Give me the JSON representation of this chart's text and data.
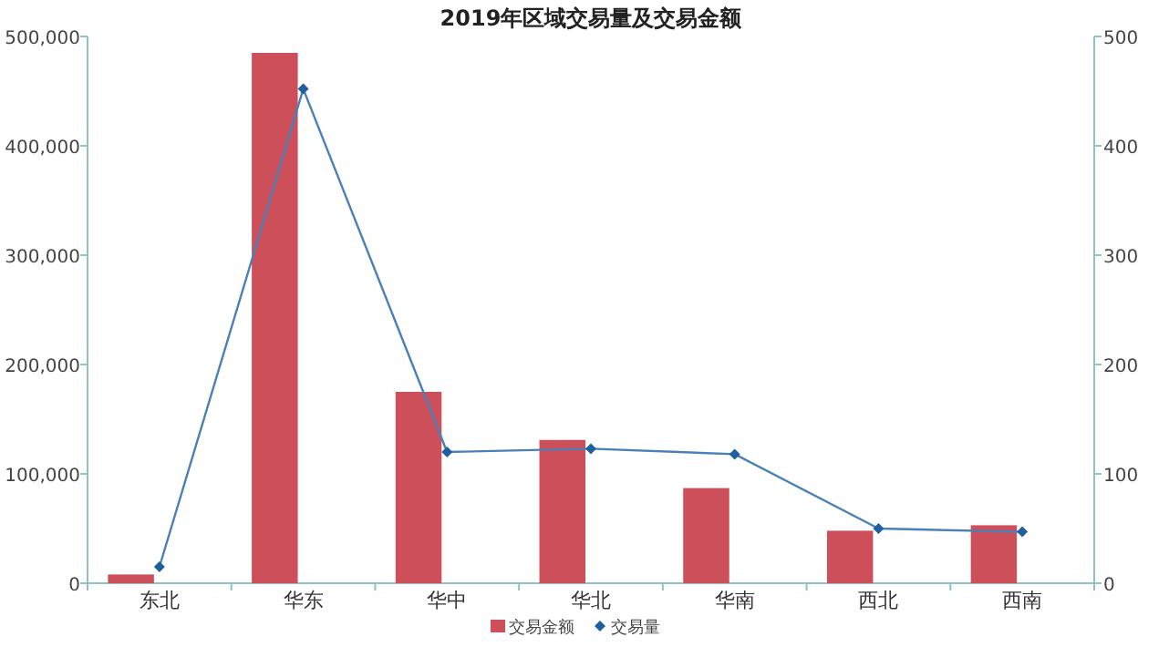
{
  "chart_data": {
    "type": "bar",
    "title": "2019年区域交易量及交易金额",
    "categories": [
      "东北",
      "华东",
      "华中",
      "华北",
      "华南",
      "西北",
      "西南"
    ],
    "series": [
      {
        "name": "交易金额",
        "color": "#cd4f5a",
        "values": [
          8000,
          485000,
          175000,
          131000,
          87000,
          48000,
          53000
        ]
      },
      {
        "name": "交易量",
        "type": "line",
        "axis": "y2",
        "color": "#4a80b8",
        "marker": "diamond",
        "values": [
          15,
          452,
          120,
          123,
          118,
          50,
          47
        ]
      }
    ],
    "ylim": [
      0,
      500000
    ],
    "yticks": [
      {
        "value": 0,
        "label": "0"
      },
      {
        "value": 100000,
        "label": "100,000"
      },
      {
        "value": 200000,
        "label": "200,000"
      },
      {
        "value": 300000,
        "label": "300,000"
      },
      {
        "value": 400000,
        "label": "400,000"
      },
      {
        "value": 500000,
        "label": "500,000"
      }
    ],
    "y2lim": [
      0,
      500
    ],
    "y2ticks": [
      0,
      100,
      200,
      300,
      400,
      500
    ],
    "grid": false,
    "legend": "bottom"
  }
}
